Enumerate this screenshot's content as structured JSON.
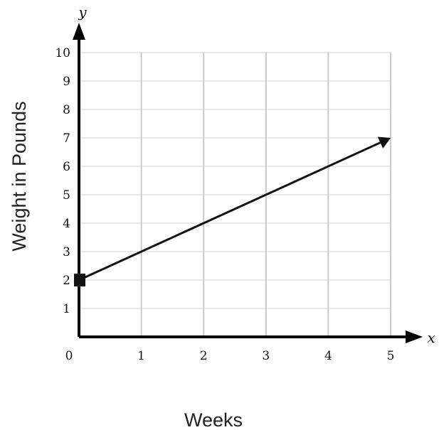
{
  "chart_data": {
    "type": "line",
    "xlabel": "Weeks",
    "ylabel": "Weight in Pounds",
    "x_axis_variable": "x",
    "y_axis_variable": "y",
    "xlim": [
      0,
      5
    ],
    "ylim": [
      0,
      10
    ],
    "x_ticks": [
      "0",
      "1",
      "2",
      "3",
      "4",
      "5"
    ],
    "y_ticks": [
      "1",
      "2",
      "3",
      "4",
      "5",
      "6",
      "7",
      "8",
      "9",
      "10"
    ],
    "grid": true,
    "series": [
      {
        "points": [
          {
            "x": 0,
            "y": 2
          },
          {
            "x": 5,
            "y": 7
          }
        ],
        "start_marker": "square",
        "end_marker": "arrow"
      }
    ]
  }
}
